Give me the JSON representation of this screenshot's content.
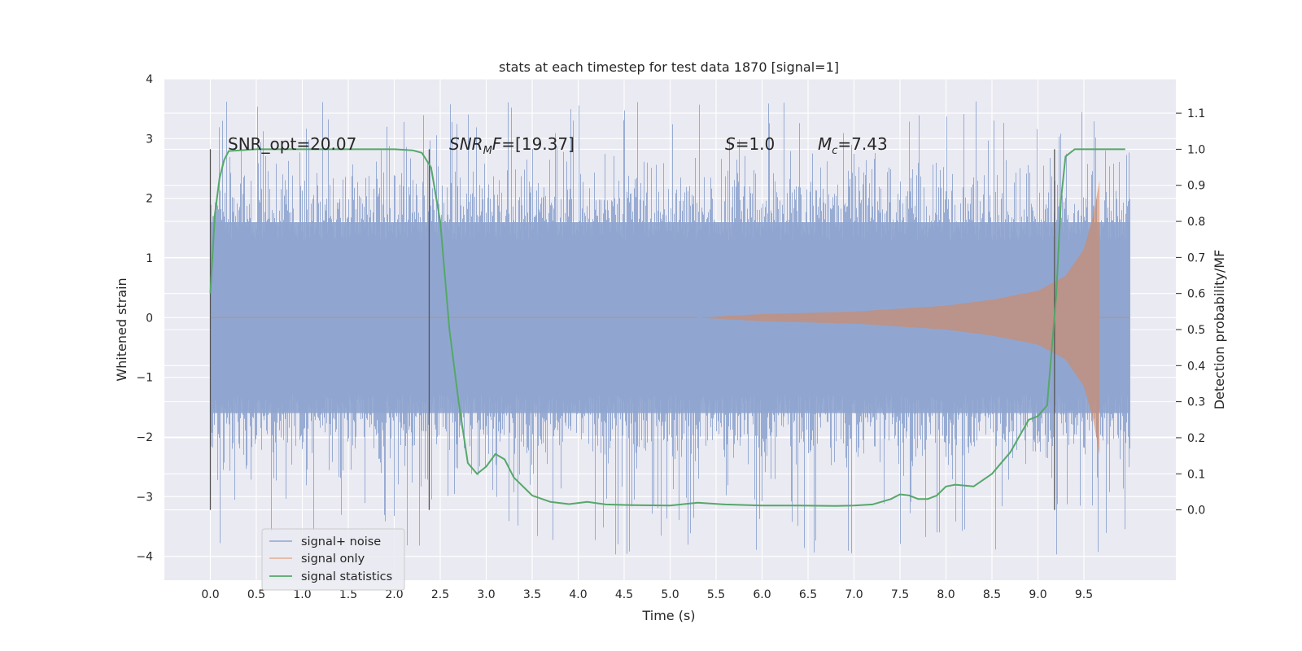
{
  "chart_data": {
    "type": "line",
    "title": "stats at each timestep for test data 1870 [signal=1]",
    "xlabel": "Time (s)",
    "ylabel": "Whitened strain",
    "y2label": "Detection probability/MF",
    "xlim": [
      -0.5,
      10.5
    ],
    "ylim": [
      -4.4,
      4.0
    ],
    "y2lim": [
      -0.195,
      1.195
    ],
    "x_ticks": [
      "0.0",
      "0.5",
      "1.0",
      "1.5",
      "2.0",
      "2.5",
      "3.0",
      "3.5",
      "4.0",
      "4.5",
      "5.0",
      "5.5",
      "6.0",
      "6.5",
      "7.0",
      "7.5",
      "8.0",
      "8.5",
      "9.0",
      "9.5"
    ],
    "y_ticks": [
      "4",
      "3",
      "2",
      "1",
      "0",
      "−1",
      "−2",
      "−3",
      "−4"
    ],
    "y2_ticks": [
      "1.1",
      "1.0",
      "0.9",
      "0.8",
      "0.7",
      "0.6",
      "0.5",
      "0.4",
      "0.3",
      "0.2",
      "0.1",
      "0.0"
    ],
    "grid": true,
    "legend_position": "lower-left",
    "annotations": [
      {
        "id": "snr-opt",
        "text": "SNR_opt=20.07"
      },
      {
        "id": "snr-mf",
        "text": "=[19.37]",
        "math_base": "SNR",
        "math_sub": "M",
        "math_tail": "F"
      },
      {
        "id": "s",
        "text": "=1.0",
        "math_base": "S"
      },
      {
        "id": "mc",
        "text": "=7.43",
        "math_base": "M",
        "math_sub": "c"
      }
    ],
    "vertical_markers_s": [
      0.0,
      2.38,
      9.18
    ],
    "series": [
      {
        "name": "signal+ noise",
        "color": "#8fa5cf",
        "kind": "noise_envelope",
        "x_range": [
          0.0,
          10.0
        ],
        "typical_range": [
          -1.6,
          1.6
        ],
        "peak_range": [
          -4.0,
          3.65
        ]
      },
      {
        "name": "signal only",
        "color": "#dd8452",
        "kind": "chirp",
        "start_s": 5.3,
        "merger_s": 9.67,
        "amplitude_at": [
          [
            5.3,
            0.0
          ],
          [
            6.0,
            0.06
          ],
          [
            7.0,
            0.1
          ],
          [
            8.0,
            0.2
          ],
          [
            8.5,
            0.3
          ],
          [
            9.0,
            0.45
          ],
          [
            9.3,
            0.7
          ],
          [
            9.5,
            1.15
          ],
          [
            9.6,
            1.7
          ],
          [
            9.67,
            2.3
          ]
        ]
      },
      {
        "name": "signal statistics",
        "color": "#55a868",
        "kind": "probability",
        "x": [
          0.0,
          0.05,
          0.1,
          0.15,
          0.2,
          0.5,
          1.0,
          1.5,
          2.0,
          2.2,
          2.3,
          2.4,
          2.5,
          2.6,
          2.7,
          2.8,
          2.9,
          3.0,
          3.1,
          3.2,
          3.3,
          3.5,
          3.7,
          3.9,
          4.1,
          4.3,
          4.6,
          5.0,
          5.3,
          5.6,
          6.0,
          6.4,
          6.8,
          7.0,
          7.2,
          7.4,
          7.5,
          7.6,
          7.7,
          7.8,
          7.9,
          8.0,
          8.1,
          8.3,
          8.5,
          8.7,
          8.9,
          9.0,
          9.1,
          9.2,
          9.25,
          9.3,
          9.4,
          9.6,
          9.8,
          9.95
        ],
        "y": [
          0.6,
          0.82,
          0.92,
          0.97,
          0.995,
          1.0,
          1.0,
          1.0,
          1.0,
          0.997,
          0.99,
          0.95,
          0.8,
          0.5,
          0.3,
          0.13,
          0.1,
          0.12,
          0.155,
          0.14,
          0.09,
          0.04,
          0.022,
          0.016,
          0.022,
          0.015,
          0.013,
          0.012,
          0.02,
          0.015,
          0.012,
          0.012,
          0.011,
          0.012,
          0.015,
          0.03,
          0.043,
          0.04,
          0.03,
          0.03,
          0.04,
          0.065,
          0.07,
          0.065,
          0.1,
          0.16,
          0.25,
          0.26,
          0.29,
          0.6,
          0.86,
          0.98,
          1.0,
          1.0,
          1.0,
          1.0
        ]
      }
    ]
  }
}
